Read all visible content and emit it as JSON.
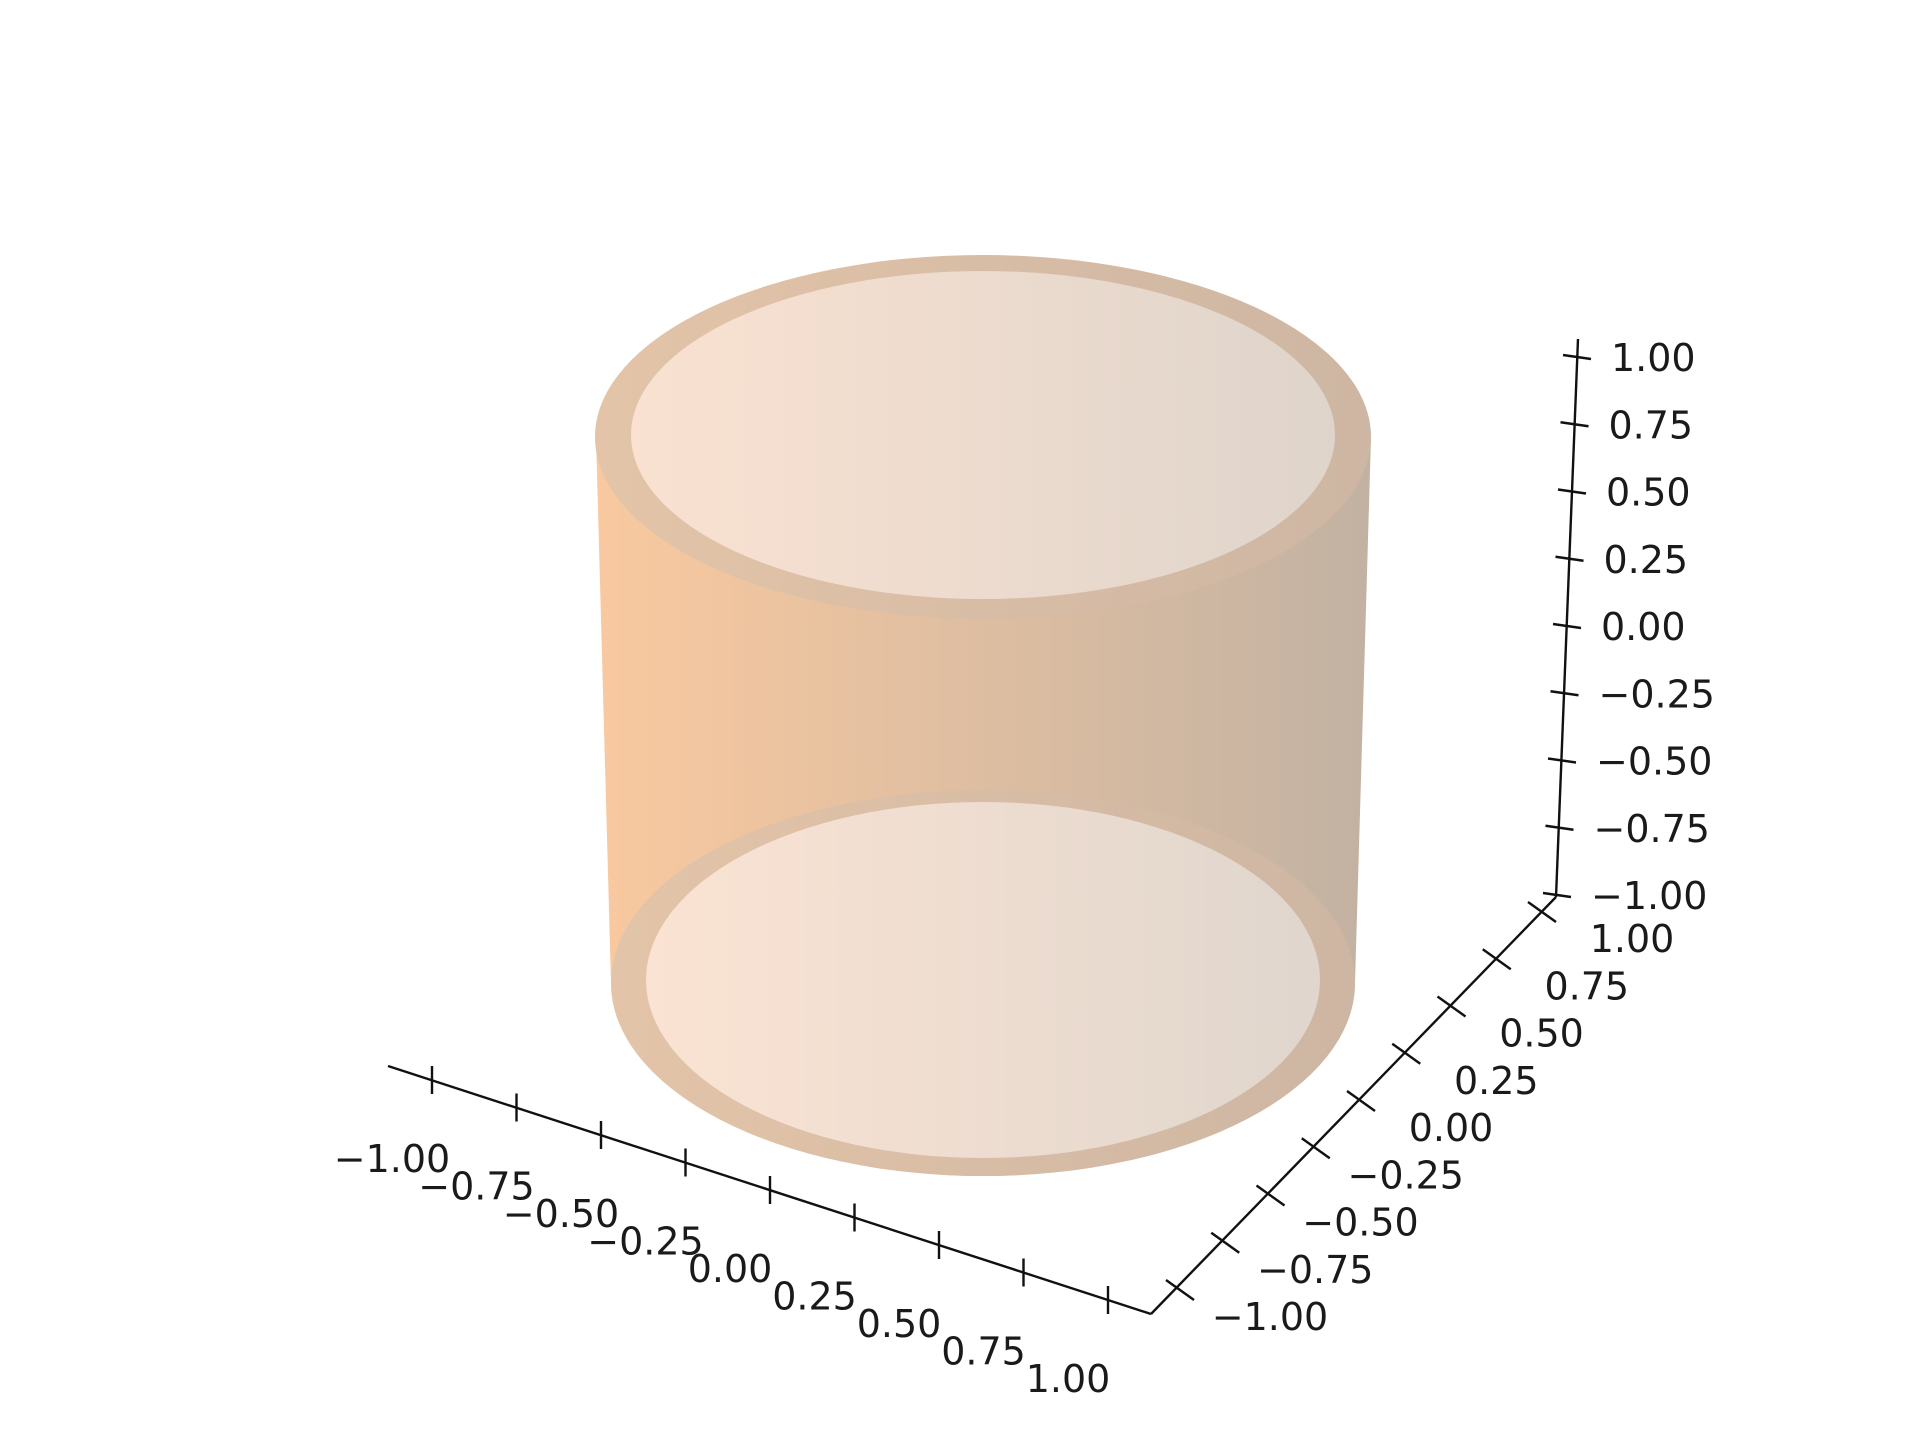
{
  "chart_data": {
    "type": "surface3d",
    "title": "",
    "xlabel": "",
    "ylabel": "",
    "zlabel": "",
    "grid": false,
    "surface": {
      "shape": "hollow cylinder (tube)",
      "radius": 1.0,
      "wall_thickness": 0.1,
      "z_range": [
        -1.0,
        1.0
      ],
      "colors": {
        "light": "#f9c9a0",
        "dark": "#c2b2a2",
        "inner": "#f0e2d8",
        "rim": "#dcc2ac"
      }
    },
    "axes": {
      "x": {
        "range": [
          -1.0,
          1.0
        ],
        "ticks": [
          -1.0,
          -0.75,
          -0.5,
          -0.25,
          0.0,
          0.25,
          0.5,
          0.75,
          1.0
        ],
        "tick_labels": [
          "−1.00",
          "−0.75",
          "−0.50",
          "−0.25",
          "0.00",
          "0.25",
          "0.50",
          "0.75",
          "1.00"
        ]
      },
      "y": {
        "range": [
          -1.0,
          1.0
        ],
        "ticks": [
          -1.0,
          -0.75,
          -0.5,
          -0.25,
          0.0,
          0.25,
          0.5,
          0.75,
          1.0
        ],
        "tick_labels": [
          "−1.00",
          "−0.75",
          "−0.50",
          "−0.25",
          "0.00",
          "0.25",
          "0.50",
          "0.75",
          "1.00"
        ]
      },
      "z": {
        "range": [
          -1.0,
          1.0
        ],
        "ticks": [
          -1.0,
          -0.75,
          -0.5,
          -0.25,
          0.0,
          0.25,
          0.5,
          0.75,
          1.0
        ],
        "tick_labels": [
          "−1.00",
          "−0.75",
          "−0.50",
          "−0.25",
          "0.00",
          "0.25",
          "0.50",
          "0.75",
          "1.00"
        ]
      }
    }
  }
}
